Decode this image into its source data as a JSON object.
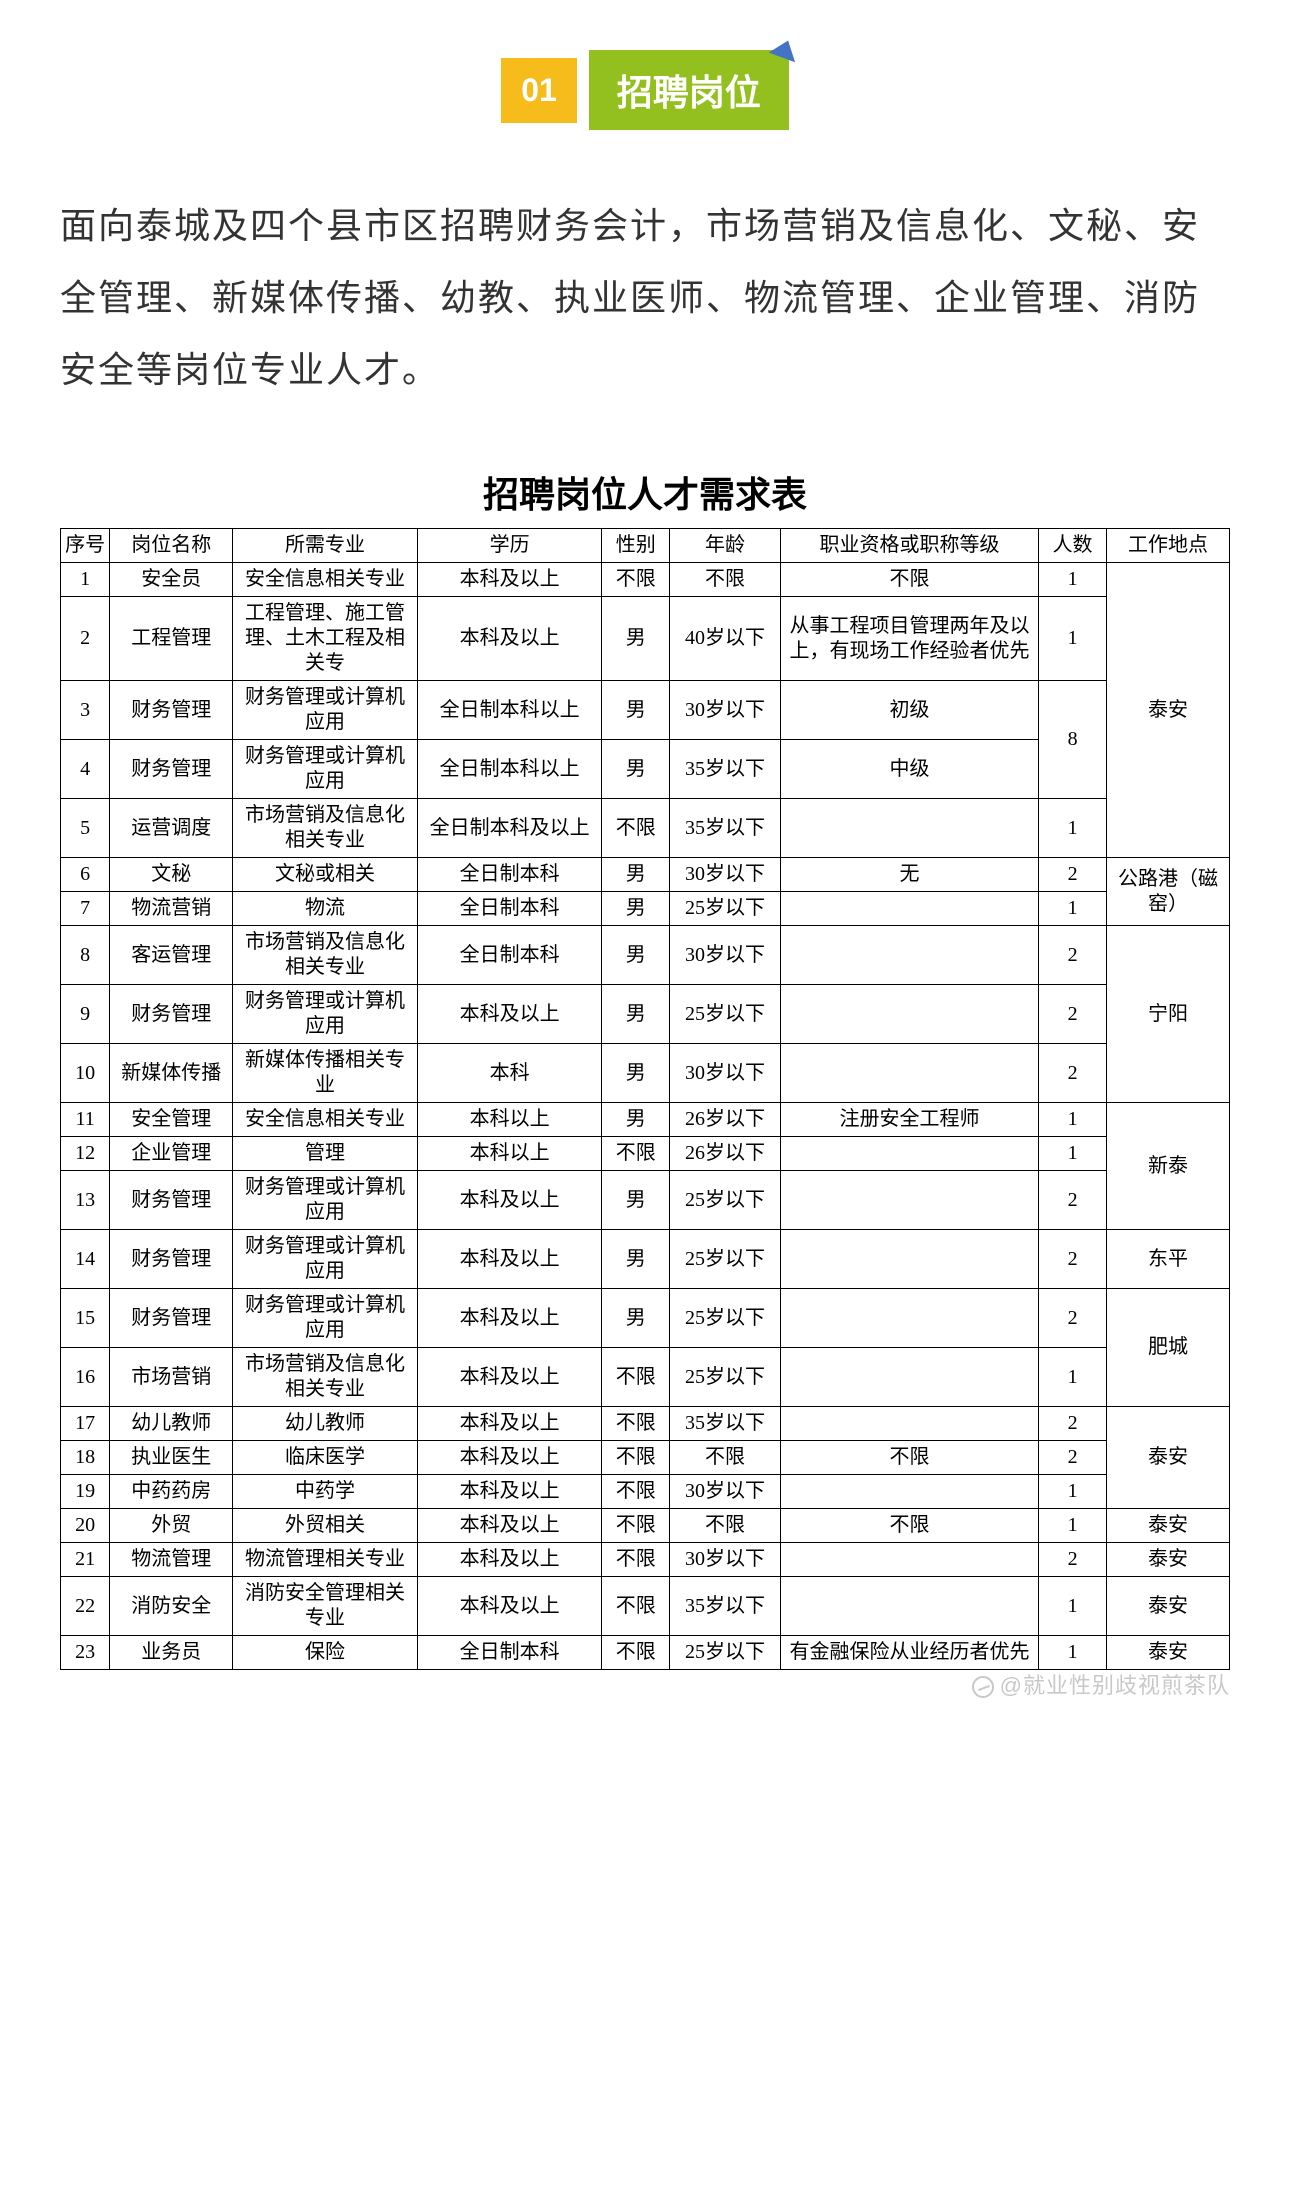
{
  "section": {
    "number": "01",
    "title": "招聘岗位"
  },
  "intro": "面向泰城及四个县市区招聘财务会计，市场营销及信息化、文秘、安全管理、新媒体传播、幼教、执业医师、物流管理、企业管理、消防安全等岗位专业人才。",
  "table": {
    "title": "招聘岗位人才需求表",
    "columns": [
      "序号",
      "岗位名称",
      "所需专业",
      "学历",
      "性别",
      "年龄",
      "职业资格或职称等级",
      "人数",
      "工作地点"
    ],
    "rows": [
      {
        "idx": "1",
        "position": "安全员",
        "major": "安全信息相关专业",
        "edu": "本科及以上",
        "sex": "不限",
        "age": "不限",
        "qual": "不限",
        "count": "1"
      },
      {
        "idx": "2",
        "position": "工程管理",
        "major": "工程管理、施工管理、土木工程及相关专",
        "edu": "本科及以上",
        "sex": "男",
        "age": "40岁以下",
        "qual": "从事工程项目管理两年及以上，有现场工作经验者优先",
        "count": "1"
      },
      {
        "idx": "3",
        "position": "财务管理",
        "major": "财务管理或计算机应用",
        "edu": "全日制本科以上",
        "sex": "男",
        "age": "30岁以下",
        "qual": "初级"
      },
      {
        "idx": "4",
        "position": "财务管理",
        "major": "财务管理或计算机应用",
        "edu": "全日制本科以上",
        "sex": "男",
        "age": "35岁以下",
        "qual": "中级"
      },
      {
        "idx": "5",
        "position": "运营调度",
        "major": "市场营销及信息化相关专业",
        "edu": "全日制本科及以上",
        "sex": "不限",
        "age": "35岁以下",
        "qual": "",
        "count": "1"
      },
      {
        "idx": "6",
        "position": "文秘",
        "major": "文秘或相关",
        "edu": "全日制本科",
        "sex": "男",
        "age": "30岁以下",
        "qual": "无",
        "count": "2"
      },
      {
        "idx": "7",
        "position": "物流营销",
        "major": "物流",
        "edu": "全日制本科",
        "sex": "男",
        "age": "25岁以下",
        "qual": "",
        "count": "1"
      },
      {
        "idx": "8",
        "position": "客运管理",
        "major": "市场营销及信息化相关专业",
        "edu": "全日制本科",
        "sex": "男",
        "age": "30岁以下",
        "qual": "",
        "count": "2"
      },
      {
        "idx": "9",
        "position": "财务管理",
        "major": "财务管理或计算机应用",
        "edu": "本科及以上",
        "sex": "男",
        "age": "25岁以下",
        "qual": "",
        "count": "2"
      },
      {
        "idx": "10",
        "position": "新媒体传播",
        "major": "新媒体传播相关专业",
        "edu": "本科",
        "sex": "男",
        "age": "30岁以下",
        "qual": "",
        "count": "2"
      },
      {
        "idx": "11",
        "position": "安全管理",
        "major": "安全信息相关专业",
        "edu": "本科以上",
        "sex": "男",
        "age": "26岁以下",
        "qual": "注册安全工程师",
        "count": "1"
      },
      {
        "idx": "12",
        "position": "企业管理",
        "major": "管理",
        "edu": "本科以上",
        "sex": "不限",
        "age": "26岁以下",
        "qual": "",
        "count": "1"
      },
      {
        "idx": "13",
        "position": "财务管理",
        "major": "财务管理或计算机应用",
        "edu": "本科及以上",
        "sex": "男",
        "age": "25岁以下",
        "qual": "",
        "count": "2"
      },
      {
        "idx": "14",
        "position": "财务管理",
        "major": "财务管理或计算机应用",
        "edu": "本科及以上",
        "sex": "男",
        "age": "25岁以下",
        "qual": "",
        "count": "2",
        "loc": "东平"
      },
      {
        "idx": "15",
        "position": "财务管理",
        "major": "财务管理或计算机应用",
        "edu": "本科及以上",
        "sex": "男",
        "age": "25岁以下",
        "qual": "",
        "count": "2"
      },
      {
        "idx": "16",
        "position": "市场营销",
        "major": "市场营销及信息化相关专业",
        "edu": "本科及以上",
        "sex": "不限",
        "age": "25岁以下",
        "qual": "",
        "count": "1"
      },
      {
        "idx": "17",
        "position": "幼儿教师",
        "major": "幼儿教师",
        "edu": "本科及以上",
        "sex": "不限",
        "age": "35岁以下",
        "qual": "",
        "count": "2"
      },
      {
        "idx": "18",
        "position": "执业医生",
        "major": "临床医学",
        "edu": "本科及以上",
        "sex": "不限",
        "age": "不限",
        "qual": "不限",
        "count": "2"
      },
      {
        "idx": "19",
        "position": "中药药房",
        "major": "中药学",
        "edu": "本科及以上",
        "sex": "不限",
        "age": "30岁以下",
        "qual": "",
        "count": "1"
      },
      {
        "idx": "20",
        "position": "外贸",
        "major": "外贸相关",
        "edu": "本科及以上",
        "sex": "不限",
        "age": "不限",
        "qual": "不限",
        "count": "1",
        "loc": "泰安"
      },
      {
        "idx": "21",
        "position": "物流管理",
        "major": "物流管理相关专业",
        "edu": "本科及以上",
        "sex": "不限",
        "age": "30岁以下",
        "qual": "",
        "count": "2",
        "loc": "泰安"
      },
      {
        "idx": "22",
        "position": "消防安全",
        "major": "消防安全管理相关专业",
        "edu": "本科及以上",
        "sex": "不限",
        "age": "35岁以下",
        "qual": "",
        "count": "1",
        "loc": "泰安"
      },
      {
        "idx": "23",
        "position": "业务员",
        "major": "保险",
        "edu": "全日制本科",
        "sex": "不限",
        "age": "25岁以下",
        "qual": "有金融保险从业经历者优先",
        "count": "1",
        "loc": "泰安"
      }
    ],
    "merged_counts": {
      "rows_3_4": "8"
    },
    "merged_locations": {
      "rows_1_5": "泰安",
      "rows_6_7": "公路港（磁窑）",
      "rows_8_10": "宁阳",
      "rows_11_13": "新泰",
      "rows_15_16": "肥城",
      "rows_17_19": "泰安"
    }
  },
  "watermark": "@就业性别歧视煎茶队",
  "colors": {
    "num_box_bg": "#f5bc1c",
    "title_box_bg": "#93c01f",
    "accent_triangle": "#4472c4",
    "text": "#333333",
    "border": "#000000",
    "watermark": "#c8c8c8"
  }
}
